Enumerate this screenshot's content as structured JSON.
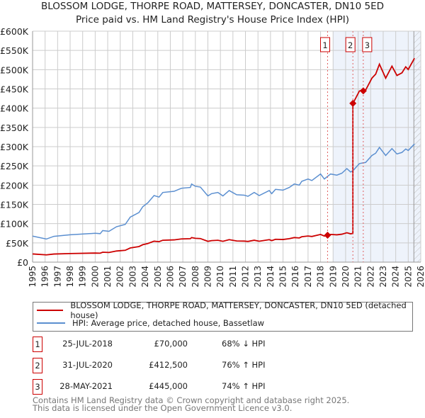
{
  "chart_data": {
    "type": "line",
    "title": "BLOSSOM LODGE, THORPE ROAD, MATTERSEY, DONCASTER, DN10 5ED",
    "subtitle": "Price paid vs. HM Land Registry's House Price Index (HPI)",
    "xlim": [
      1995,
      2026
    ],
    "ylim": [
      0,
      600000
    ],
    "x_ticks": [
      "1995",
      "1996",
      "1997",
      "1998",
      "1999",
      "2000",
      "2001",
      "2002",
      "2003",
      "2004",
      "2005",
      "2006",
      "2007",
      "2008",
      "2009",
      "2010",
      "2011",
      "2012",
      "2013",
      "2014",
      "2015",
      "2016",
      "2017",
      "2018",
      "2019",
      "2020",
      "2021",
      "2022",
      "2023",
      "2024",
      "2025",
      "2026"
    ],
    "y_ticks": [
      {
        "value": 0,
        "label": "£0"
      },
      {
        "value": 50000,
        "label": "£50K"
      },
      {
        "value": 100000,
        "label": "£100K"
      },
      {
        "value": 150000,
        "label": "£150K"
      },
      {
        "value": 200000,
        "label": "£200K"
      },
      {
        "value": 250000,
        "label": "£250K"
      },
      {
        "value": 300000,
        "label": "£300K"
      },
      {
        "value": 350000,
        "label": "£350K"
      },
      {
        "value": 400000,
        "label": "£400K"
      },
      {
        "value": 450000,
        "label": "£450K"
      },
      {
        "value": 500000,
        "label": "£500K"
      },
      {
        "value": 550000,
        "label": "£550K"
      },
      {
        "value": 600000,
        "label": "£600K"
      }
    ],
    "grid": true,
    "shaded_range": [
      2019,
      2026
    ],
    "hatched_from": 2025.45,
    "series": [
      {
        "name": "BLOSSOM LODGE, THORPE ROAD, MATTERSEY, DONCASTER, DN10 5ED (detached house)",
        "color": "#cc0000",
        "derived_from": "HPI indexed to sales"
      },
      {
        "name": "HPI: Average price, detached house, Bassetlaw",
        "color": "#5b8fd0",
        "points": [
          [
            1995,
            67600
          ],
          [
            1996.1,
            60000
          ],
          [
            1996.7,
            67000
          ],
          [
            1998,
            71000
          ],
          [
            2000,
            75000
          ],
          [
            2000.4,
            74000
          ],
          [
            2000.6,
            82000
          ],
          [
            2001.1,
            80000
          ],
          [
            2001.7,
            92000
          ],
          [
            2002.4,
            98000
          ],
          [
            2002.8,
            117000
          ],
          [
            2003.5,
            129000
          ],
          [
            2003.8,
            144000
          ],
          [
            2004.2,
            154000
          ],
          [
            2004.7,
            173000
          ],
          [
            2005.1,
            169000
          ],
          [
            2005.4,
            181000
          ],
          [
            2006.3,
            184000
          ],
          [
            2006.9,
            192000
          ],
          [
            2007.6,
            194000
          ],
          [
            2007.7,
            203000
          ],
          [
            2008,
            197000
          ],
          [
            2008.4,
            195000
          ],
          [
            2009,
            172000
          ],
          [
            2009.3,
            178000
          ],
          [
            2009.8,
            181000
          ],
          [
            2010.2,
            172000
          ],
          [
            2010.7,
            186000
          ],
          [
            2011.3,
            175000
          ],
          [
            2011.9,
            174000
          ],
          [
            2012.2,
            171000
          ],
          [
            2012.7,
            181000
          ],
          [
            2013.1,
            173000
          ],
          [
            2013.9,
            186000
          ],
          [
            2014.1,
            178000
          ],
          [
            2014.4,
            189000
          ],
          [
            2015,
            187000
          ],
          [
            2015.5,
            194000
          ],
          [
            2015.9,
            203000
          ],
          [
            2016.3,
            200000
          ],
          [
            2016.5,
            210000
          ],
          [
            2017,
            216000
          ],
          [
            2017.3,
            212000
          ],
          [
            2018,
            229000
          ],
          [
            2018.3,
            216000
          ],
          [
            2018.8,
            229000
          ],
          [
            2019.3,
            226000
          ],
          [
            2019.7,
            231000
          ],
          [
            2020.1,
            243000
          ],
          [
            2020.4,
            234000
          ],
          [
            2020.6,
            238000
          ],
          [
            2021.1,
            256000
          ],
          [
            2021.6,
            259000
          ],
          [
            2022.1,
            277000
          ],
          [
            2022.4,
            283000
          ],
          [
            2022.7,
            298000
          ],
          [
            2023.2,
            277000
          ],
          [
            2023.7,
            295000
          ],
          [
            2024.1,
            281000
          ],
          [
            2024.5,
            285000
          ],
          [
            2024.8,
            294000
          ],
          [
            2025,
            290000
          ],
          [
            2025.5,
            307000
          ]
        ]
      }
    ],
    "sales": [
      {
        "id": "1",
        "x": 2018.56,
        "price": 70000,
        "date": "25-JUL-2018",
        "price_label": "£70,000",
        "hpi_label": "68% ↓ HPI"
      },
      {
        "id": "2",
        "x": 2020.58,
        "price": 412500,
        "date": "31-JUL-2020",
        "price_label": "£412,500",
        "hpi_label": "76% ↑ HPI"
      },
      {
        "id": "3",
        "x": 2021.41,
        "price": 445000,
        "date": "28-MAY-2021",
        "price_label": "£445,000",
        "hpi_label": "74% ↑ HPI"
      }
    ]
  },
  "legend": {
    "property": "BLOSSOM LODGE, THORPE ROAD, MATTERSEY, DONCASTER, DN10 5ED (detached house)",
    "hpi": "HPI: Average price, detached house, Bassetlaw"
  },
  "footer": {
    "line1": "Contains HM Land Registry data © Crown copyright and database right 2025.",
    "line2": "This data is licensed under the Open Government Licence v3.0."
  }
}
